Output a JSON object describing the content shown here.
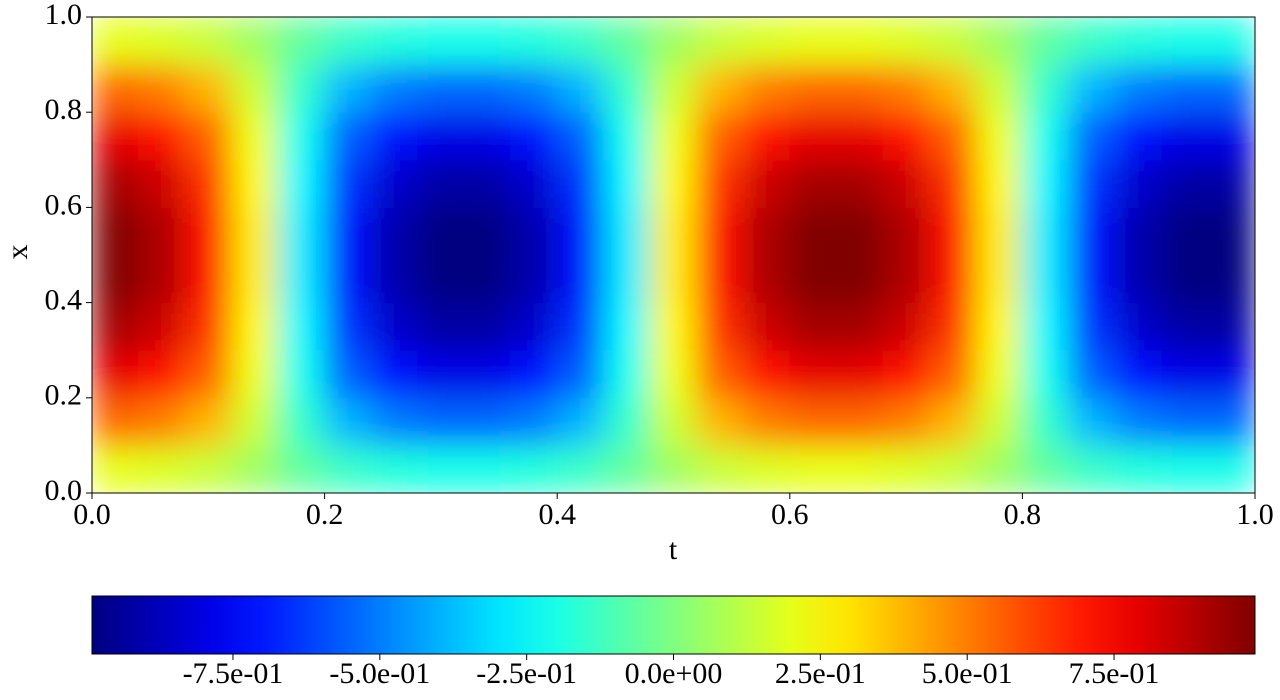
{
  "chart_data": {
    "type": "heatmap",
    "xlabel": "t",
    "ylabel": "x",
    "t": [
      0.02,
      0.06,
      0.1,
      0.14,
      0.18,
      0.22,
      0.26,
      0.3,
      0.34,
      0.38,
      0.42,
      0.46,
      0.5,
      0.54,
      0.58,
      0.62,
      0.66,
      0.7,
      0.74,
      0.78,
      0.82,
      0.86,
      0.9,
      0.94,
      0.98
    ],
    "x": [
      0.05,
      0.15,
      0.25,
      0.35,
      0.45,
      0.55,
      0.65,
      0.75,
      0.85,
      0.95
    ],
    "values": [
      [
        0.2,
        0.18,
        0.14,
        0.06,
        -0.06,
        -0.14,
        -0.18,
        -0.2,
        -0.2,
        -0.18,
        -0.14,
        -0.06,
        0.06,
        0.14,
        0.18,
        0.2,
        0.2,
        0.18,
        0.14,
        0.06,
        -0.06,
        -0.14,
        -0.18,
        -0.2,
        -0.2
      ],
      [
        0.54,
        0.5,
        0.39,
        0.15,
        -0.15,
        -0.39,
        -0.5,
        -0.54,
        -0.54,
        -0.5,
        -0.39,
        -0.15,
        0.15,
        0.39,
        0.5,
        0.54,
        0.54,
        0.5,
        0.39,
        0.15,
        -0.15,
        -0.39,
        -0.5,
        -0.54,
        -0.54
      ],
      [
        0.79,
        0.72,
        0.56,
        0.22,
        -0.22,
        -0.56,
        -0.72,
        -0.79,
        -0.79,
        -0.72,
        -0.56,
        -0.22,
        0.22,
        0.56,
        0.72,
        0.79,
        0.79,
        0.72,
        0.56,
        0.22,
        -0.22,
        -0.56,
        -0.72,
        -0.79,
        -0.79
      ],
      [
        0.92,
        0.84,
        0.65,
        0.26,
        -0.26,
        -0.65,
        -0.84,
        -0.92,
        -0.92,
        -0.84,
        -0.65,
        -0.26,
        0.26,
        0.65,
        0.84,
        0.92,
        0.92,
        0.84,
        0.65,
        0.26,
        -0.26,
        -0.65,
        -0.84,
        -0.92,
        -0.92
      ],
      [
        0.99,
        0.9,
        0.7,
        0.28,
        -0.28,
        -0.7,
        -0.9,
        -0.99,
        -0.99,
        -0.9,
        -0.7,
        -0.28,
        0.28,
        0.7,
        0.9,
        0.99,
        0.99,
        0.9,
        0.7,
        0.28,
        -0.28,
        -0.7,
        -0.9,
        -0.99,
        -0.99
      ],
      [
        0.99,
        0.9,
        0.7,
        0.28,
        -0.28,
        -0.7,
        -0.9,
        -0.99,
        -0.99,
        -0.9,
        -0.7,
        -0.28,
        0.28,
        0.7,
        0.9,
        0.99,
        0.99,
        0.9,
        0.7,
        0.28,
        -0.28,
        -0.7,
        -0.9,
        -0.99,
        -0.99
      ],
      [
        0.92,
        0.84,
        0.65,
        0.26,
        -0.26,
        -0.65,
        -0.84,
        -0.92,
        -0.92,
        -0.84,
        -0.65,
        -0.26,
        0.26,
        0.65,
        0.84,
        0.92,
        0.92,
        0.84,
        0.65,
        0.26,
        -0.26,
        -0.65,
        -0.84,
        -0.92,
        -0.92
      ],
      [
        0.79,
        0.72,
        0.56,
        0.22,
        -0.22,
        -0.56,
        -0.72,
        -0.79,
        -0.79,
        -0.72,
        -0.56,
        -0.22,
        0.22,
        0.56,
        0.72,
        0.79,
        0.79,
        0.72,
        0.56,
        0.22,
        -0.22,
        -0.56,
        -0.72,
        -0.79,
        -0.79
      ],
      [
        0.54,
        0.5,
        0.39,
        0.15,
        -0.15,
        -0.39,
        -0.5,
        -0.54,
        -0.54,
        -0.5,
        -0.39,
        -0.15,
        0.15,
        0.39,
        0.5,
        0.54,
        0.54,
        0.5,
        0.39,
        0.15,
        -0.15,
        -0.39,
        -0.5,
        -0.54,
        -0.54
      ],
      [
        0.2,
        0.18,
        0.14,
        0.06,
        -0.06,
        -0.14,
        -0.18,
        -0.2,
        -0.2,
        -0.18,
        -0.14,
        -0.06,
        0.06,
        0.14,
        0.18,
        0.2,
        0.2,
        0.18,
        0.14,
        0.06,
        -0.06,
        -0.14,
        -0.18,
        -0.2,
        -0.2
      ]
    ],
    "colormap": "jet",
    "xlim": [
      0,
      1
    ],
    "ylim": [
      0,
      1
    ],
    "xticks": [
      {
        "value": 0,
        "label": "0.0"
      },
      0.2,
      0.4,
      0.6,
      0.8,
      {
        "value": 1,
        "label": "1.0"
      }
    ],
    "yticks": [
      {
        "value": 0,
        "label": "0.0"
      },
      0.2,
      0.4,
      0.6,
      0.8,
      {
        "value": 1,
        "label": "1.0"
      }
    ],
    "clim": [
      -0.99,
      0.99
    ],
    "cticks": [
      {
        "value": -0.75,
        "label": "-7.5e-01"
      },
      {
        "value": -0.5,
        "label": "-5.0e-01"
      },
      {
        "value": -0.25,
        "label": "-2.5e-01"
      },
      {
        "value": 0,
        "label": "0.0e+00"
      },
      {
        "value": 0.25,
        "label": "2.5e-01"
      },
      {
        "value": 0.5,
        "label": "5.0e-01"
      },
      {
        "value": 0.75,
        "label": "7.5e-01"
      }
    ]
  }
}
